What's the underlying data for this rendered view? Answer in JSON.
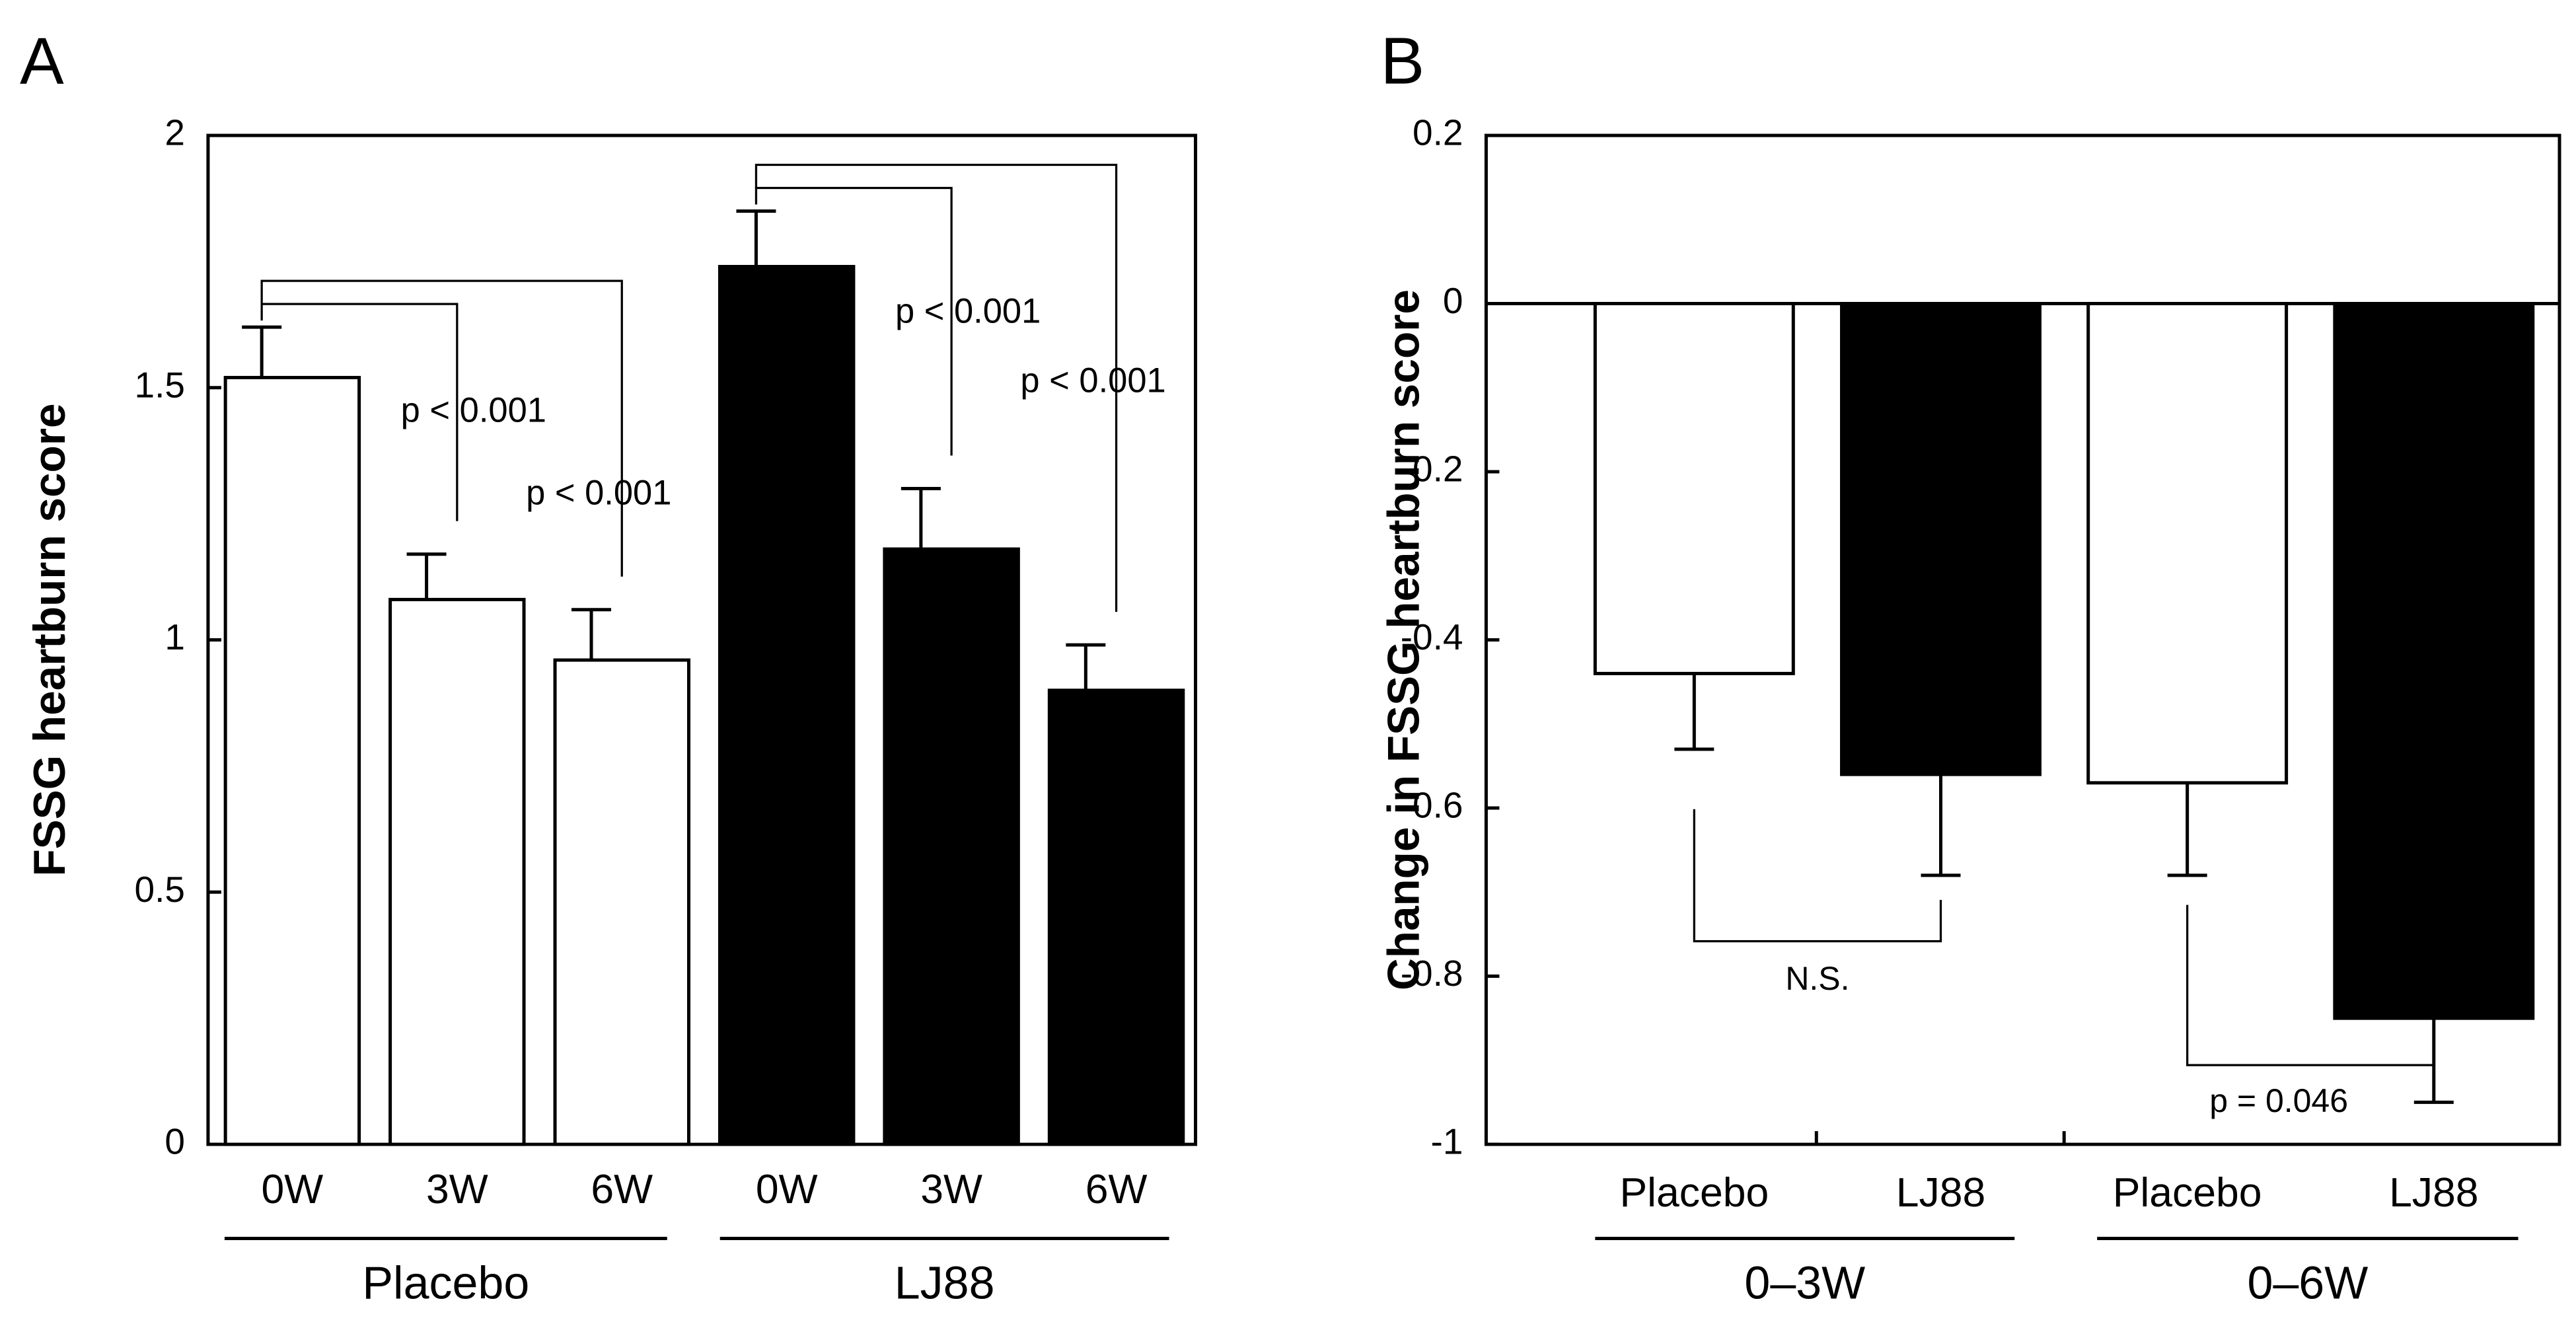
{
  "chart_data": [
    {
      "type": "bar",
      "panel": "A",
      "ylabel": "FSSG heartburn score",
      "categories": [
        "0W",
        "3W",
        "6W",
        "0W",
        "3W",
        "6W"
      ],
      "groups": [
        "Placebo",
        "LJ88"
      ],
      "values": [
        1.52,
        1.08,
        0.96,
        1.74,
        1.18,
        0.9
      ],
      "errors": [
        0.1,
        0.09,
        0.1,
        0.11,
        0.12,
        0.09
      ],
      "colors": [
        "#ffffff",
        "#ffffff",
        "#ffffff",
        "#000000",
        "#000000",
        "#000000"
      ],
      "ylim": [
        0,
        2
      ],
      "yticks": [
        0,
        0.5,
        1,
        1.5,
        2
      ],
      "annotations": [
        "p < 0.001",
        "p < 0.001",
        "p < 0.001",
        "p < 0.001"
      ]
    },
    {
      "type": "bar",
      "panel": "B",
      "ylabel": "Change in FSSG heartburn score",
      "categories": [
        "Placebo",
        "LJ88",
        "Placebo",
        "LJ88"
      ],
      "groups": [
        "0–3W",
        "0–6W"
      ],
      "values": [
        -0.44,
        -0.56,
        -0.57,
        -0.85
      ],
      "errors": [
        0.09,
        0.12,
        0.11,
        0.1
      ],
      "colors": [
        "#ffffff",
        "#000000",
        "#ffffff",
        "#000000"
      ],
      "ylim": [
        -1,
        0.2
      ],
      "yticks": [
        -1,
        -0.8,
        -0.6,
        -0.4,
        -0.2,
        0,
        0.2
      ],
      "annotations": [
        "N.S.",
        "p = 0.046"
      ]
    }
  ]
}
